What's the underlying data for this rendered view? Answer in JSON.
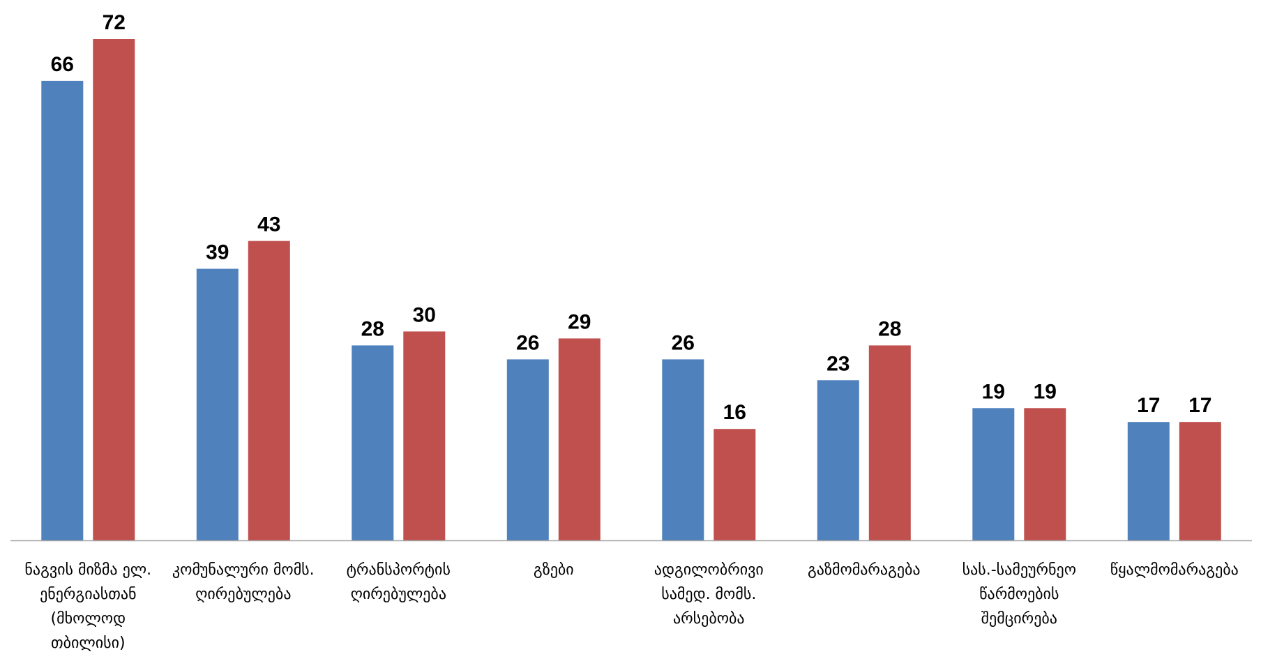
{
  "chart_data": {
    "type": "bar",
    "title": "",
    "xlabel": "",
    "ylabel": "",
    "categories": [
      "ნაგვის მიზმა ელ. ენერგიასთან (მხოლოდ თბილისი)",
      "კომუნალური მომს. ღირებულება",
      "ტრანსპორტის ღირებულება",
      "გზები",
      "ადგილობრივი სამედ. მომს. არსებობა",
      "გაზმომარაგება",
      "სას.-სამეურნეო წარმოების შემცირება",
      "წყალმომარაგება"
    ],
    "series": [
      {
        "values": [
          66,
          39,
          28,
          26,
          26,
          23,
          19,
          17
        ],
        "color": "#4F81BD"
      },
      {
        "values": [
          72,
          43,
          30,
          29,
          16,
          28,
          19,
          17
        ],
        "color": "#C0504D"
      }
    ],
    "ylim": [
      0,
      72
    ],
    "grid": false,
    "legend": "none",
    "axis_color": "#A6A6A6"
  }
}
